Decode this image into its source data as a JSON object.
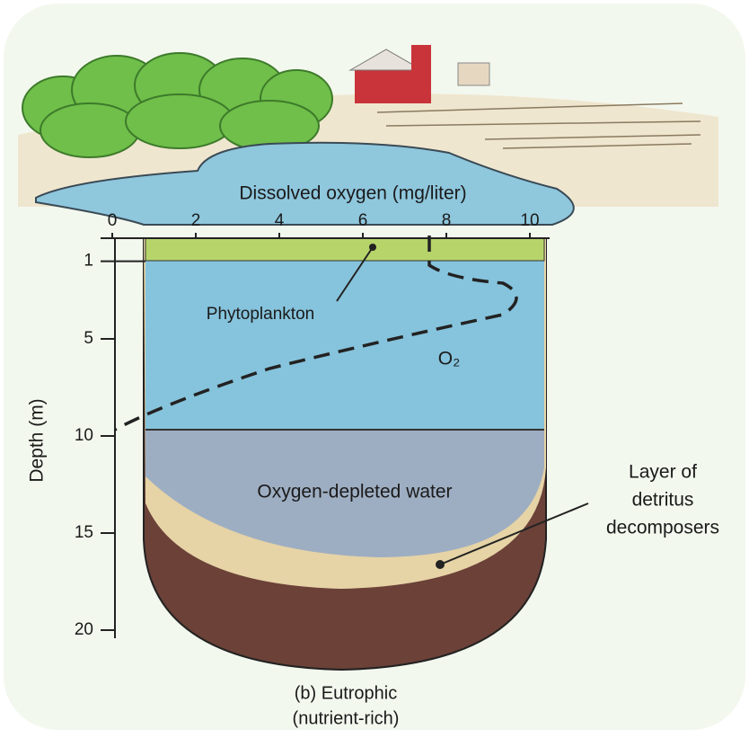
{
  "x_axis": {
    "title": "Dissolved oxygen (mg/liter)",
    "ticks": [
      0,
      2,
      4,
      6,
      8,
      10
    ]
  },
  "y_axis": {
    "title": "Depth (m)",
    "ticks": [
      1,
      5,
      10,
      15,
      20
    ]
  },
  "labels": {
    "phytoplankton": "Phytoplankton",
    "o2": "O₂",
    "depleted": "Oxygen-depleted water",
    "detritus": [
      "Layer of",
      "detritus",
      "decomposers"
    ]
  },
  "caption": [
    "(b) Eutrophic",
    "(nutrient-rich)"
  ]
}
